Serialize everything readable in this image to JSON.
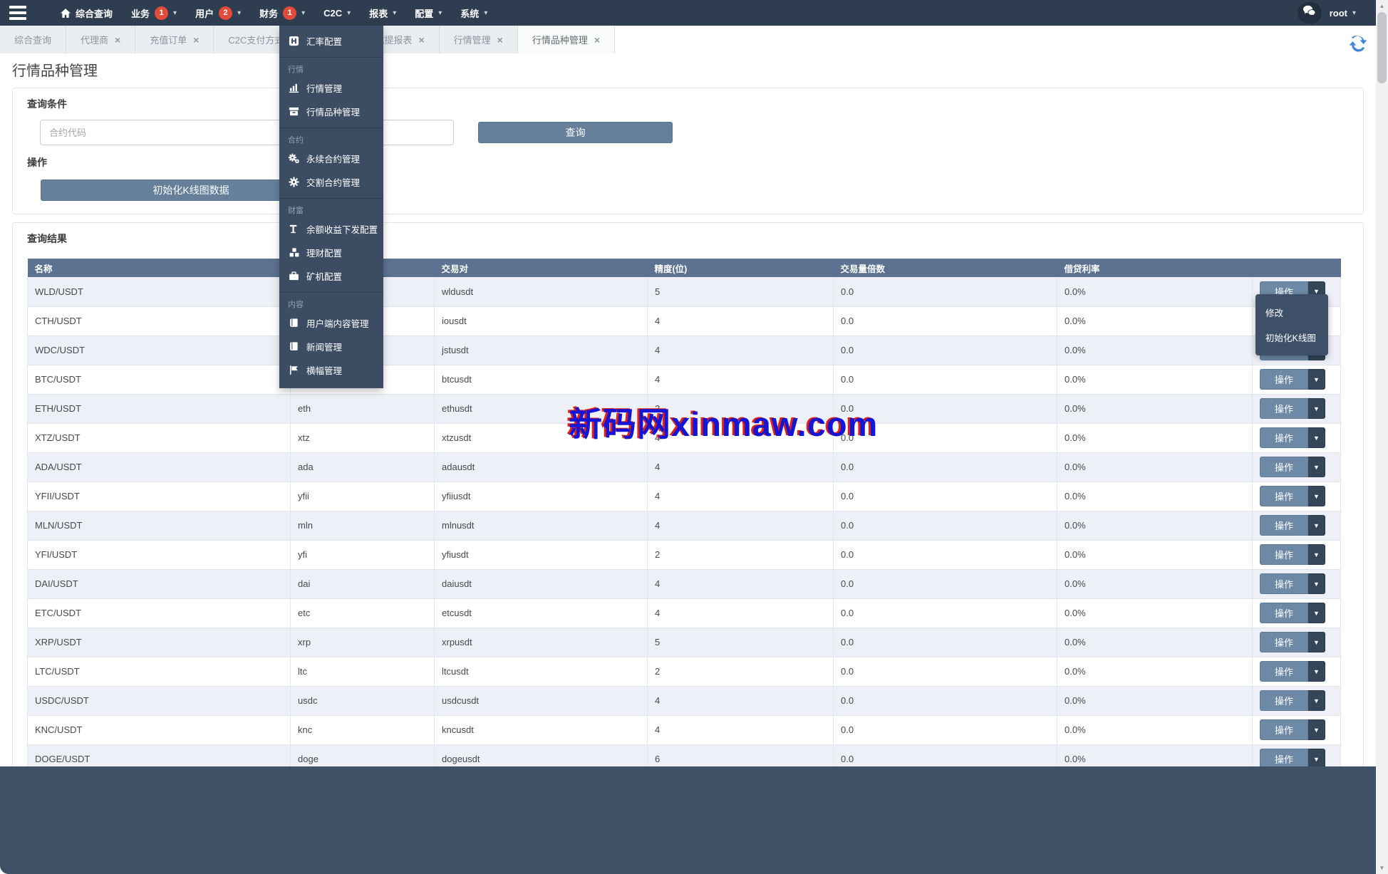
{
  "navbar": {
    "items": [
      {
        "label": "综合查询",
        "icon": "home",
        "badge": null,
        "caret": false
      },
      {
        "label": "业务",
        "icon": null,
        "badge": "1",
        "caret": true
      },
      {
        "label": "用户",
        "icon": null,
        "badge": "2",
        "caret": true
      },
      {
        "label": "财务",
        "icon": null,
        "badge": "1",
        "caret": true
      },
      {
        "label": "C2C",
        "icon": null,
        "badge": null,
        "caret": true
      },
      {
        "label": "报表",
        "icon": null,
        "badge": null,
        "caret": true
      },
      {
        "label": "配置",
        "icon": null,
        "badge": null,
        "caret": true
      },
      {
        "label": "系统",
        "icon": null,
        "badge": null,
        "caret": true
      }
    ],
    "user": "root"
  },
  "c2c_menu": {
    "groups": [
      {
        "section": null,
        "items": [
          {
            "icon": "exchange-rate",
            "label": "汇率配置"
          }
        ]
      },
      {
        "section": "行情",
        "items": [
          {
            "icon": "bar-chart",
            "label": "行情管理"
          },
          {
            "icon": "archive-box",
            "label": "行情品种管理"
          }
        ]
      },
      {
        "section": "合约",
        "items": [
          {
            "icon": "gears",
            "label": "永续合约管理"
          },
          {
            "icon": "gear",
            "label": "交割合约管理"
          }
        ]
      },
      {
        "section": "财富",
        "items": [
          {
            "icon": "text-height",
            "label": "余额收益下发配置"
          },
          {
            "icon": "cubes",
            "label": "理财配置"
          },
          {
            "icon": "briefcase",
            "label": "矿机配置"
          }
        ]
      },
      {
        "section": "内容",
        "items": [
          {
            "icon": "book",
            "label": "用户端内容管理"
          },
          {
            "icon": "book",
            "label": "新闻管理"
          },
          {
            "icon": "flag",
            "label": "横幅管理"
          }
        ]
      }
    ]
  },
  "tabs": [
    {
      "label": "综合查询",
      "closable": false,
      "active": false,
      "wide": false
    },
    {
      "label": "代理商",
      "closable": true,
      "active": false,
      "wide": false
    },
    {
      "label": "充值订单",
      "closable": true,
      "active": false,
      "wide": false
    },
    {
      "label": "C2C支付方式模板",
      "closable": true,
      "active": false,
      "wide": true
    },
    {
      "label": "总充提报表",
      "closable": true,
      "active": false,
      "wide": false
    },
    {
      "label": "行情管理",
      "closable": true,
      "active": false,
      "wide": false
    },
    {
      "label": "行情品种管理",
      "closable": true,
      "active": true,
      "wide": false
    }
  ],
  "page": {
    "title": "行情品种管理"
  },
  "query_panel": {
    "heading": "查询条件",
    "input_placeholder": "合约代码",
    "search_button": "查询",
    "ops_heading": "操作",
    "init_button": "初始化K线图数据"
  },
  "results": {
    "heading": "查询结果",
    "columns": [
      "名称",
      "",
      "交易对",
      "精度(位)",
      "交易量倍数",
      "借贷利率",
      ""
    ],
    "action_label": "操作",
    "rows": [
      {
        "name": "WLD/USDT",
        "code": "",
        "pair": "wldusdt",
        "precision": "5",
        "multiple": "0.0",
        "rate": "0.0%"
      },
      {
        "name": "CTH/USDT",
        "code": "",
        "pair": "iousdt",
        "precision": "4",
        "multiple": "0.0",
        "rate": "0.0%"
      },
      {
        "name": "WDC/USDT",
        "code": "",
        "pair": "jstusdt",
        "precision": "4",
        "multiple": "0.0",
        "rate": "0.0%"
      },
      {
        "name": "BTC/USDT",
        "code": "",
        "pair": "btcusdt",
        "precision": "4",
        "multiple": "0.0",
        "rate": "0.0%"
      },
      {
        "name": "ETH/USDT",
        "code": "eth",
        "pair": "ethusdt",
        "precision": "2",
        "multiple": "0.0",
        "rate": "0.0%"
      },
      {
        "name": "XTZ/USDT",
        "code": "xtz",
        "pair": "xtzusdt",
        "precision": "4",
        "multiple": "0.0",
        "rate": "0.0%"
      },
      {
        "name": "ADA/USDT",
        "code": "ada",
        "pair": "adausdt",
        "precision": "4",
        "multiple": "0.0",
        "rate": "0.0%"
      },
      {
        "name": "YFII/USDT",
        "code": "yfii",
        "pair": "yfiiusdt",
        "precision": "4",
        "multiple": "0.0",
        "rate": "0.0%"
      },
      {
        "name": "MLN/USDT",
        "code": "mln",
        "pair": "mlnusdt",
        "precision": "4",
        "multiple": "0.0",
        "rate": "0.0%"
      },
      {
        "name": "YFI/USDT",
        "code": "yfi",
        "pair": "yfiusdt",
        "precision": "2",
        "multiple": "0.0",
        "rate": "0.0%"
      },
      {
        "name": "DAI/USDT",
        "code": "dai",
        "pair": "daiusdt",
        "precision": "4",
        "multiple": "0.0",
        "rate": "0.0%"
      },
      {
        "name": "ETC/USDT",
        "code": "etc",
        "pair": "etcusdt",
        "precision": "4",
        "multiple": "0.0",
        "rate": "0.0%"
      },
      {
        "name": "XRP/USDT",
        "code": "xrp",
        "pair": "xrpusdt",
        "precision": "5",
        "multiple": "0.0",
        "rate": "0.0%"
      },
      {
        "name": "LTC/USDT",
        "code": "ltc",
        "pair": "ltcusdt",
        "precision": "2",
        "multiple": "0.0",
        "rate": "0.0%"
      },
      {
        "name": "USDC/USDT",
        "code": "usdc",
        "pair": "usdcusdt",
        "precision": "4",
        "multiple": "0.0",
        "rate": "0.0%"
      },
      {
        "name": "KNC/USDT",
        "code": "knc",
        "pair": "kncusdt",
        "precision": "4",
        "multiple": "0.0",
        "rate": "0.0%"
      },
      {
        "name": "DOGE/USDT",
        "code": "doge",
        "pair": "dogeusdt",
        "precision": "6",
        "multiple": "0.0",
        "rate": "0.0%"
      }
    ]
  },
  "row_menu": {
    "items": [
      "修改",
      "初始化K线图"
    ]
  },
  "watermark": "新码网xinmaw.com",
  "colors": {
    "navbar_bg": "#2e3d4f",
    "menu_bg": "#3c4d63",
    "button_bg": "#66809c",
    "table_header_bg": "#5c7290",
    "row_alt_bg": "#edf1f7",
    "badge_red": "#e04b3a",
    "action_caret_bg": "#344658",
    "footer_bg": "#3e5167",
    "watermark_blue": "#1515d6",
    "watermark_red": "#e02314",
    "refresh_blue": "#4286d8",
    "tab_bg": "#e9edf0"
  }
}
